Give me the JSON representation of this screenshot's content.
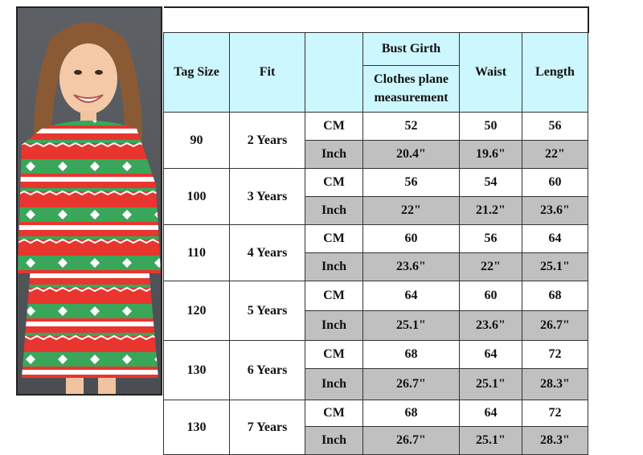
{
  "colors": {
    "header_bg": "#cdf7ff",
    "inch_row_bg": "#c0c0c0",
    "dress_red": "#e8352f",
    "dress_green": "#3aa65a"
  },
  "photo": {
    "description_icon": "girl-in-christmas-dress-photo"
  },
  "table": {
    "headers": {
      "tag_size": "Tag Size",
      "fit": "Fit",
      "unit": "",
      "bust_girth": "Bust Girth",
      "bust_sub": "Clothes plane measurement",
      "waist": "Waist",
      "length": "Length"
    },
    "rows": [
      {
        "tag": "90",
        "fit": "2 Years",
        "cm": {
          "unit": "CM",
          "bust": "52",
          "waist": "50",
          "length": "56"
        },
        "inch": {
          "unit": "Inch",
          "bust": "20.4\"",
          "waist": "19.6\"",
          "length": "22\""
        }
      },
      {
        "tag": "100",
        "fit": "3 Years",
        "cm": {
          "unit": "CM",
          "bust": "56",
          "waist": "54",
          "length": "60"
        },
        "inch": {
          "unit": "Inch",
          "bust": "22\"",
          "waist": "21.2\"",
          "length": "23.6\""
        }
      },
      {
        "tag": "110",
        "fit": "4 Years",
        "cm": {
          "unit": "CM",
          "bust": "60",
          "waist": "56",
          "length": "64"
        },
        "inch": {
          "unit": "Inch",
          "bust": "23.6\"",
          "waist": "22\"",
          "length": "25.1\""
        }
      },
      {
        "tag": "120",
        "fit": "5 Years",
        "cm": {
          "unit": "CM",
          "bust": "64",
          "waist": "60",
          "length": "68"
        },
        "inch": {
          "unit": "Inch",
          "bust": "25.1\"",
          "waist": "23.6\"",
          "length": "26.7\""
        }
      },
      {
        "tag": "130",
        "fit": "6 Years",
        "cm": {
          "unit": "CM",
          "bust": "68",
          "waist": "64",
          "length": "72"
        },
        "inch": {
          "unit": "Inch",
          "bust": "26.7\"",
          "waist": "25.1\"",
          "length": "28.3\""
        }
      },
      {
        "tag": "130",
        "fit": "7 Years",
        "cm": {
          "unit": "CM",
          "bust": "68",
          "waist": "64",
          "length": "72"
        },
        "inch": {
          "unit": "Inch",
          "bust": "26.7\"",
          "waist": "25.1\"",
          "length": "28.3\""
        }
      }
    ]
  }
}
